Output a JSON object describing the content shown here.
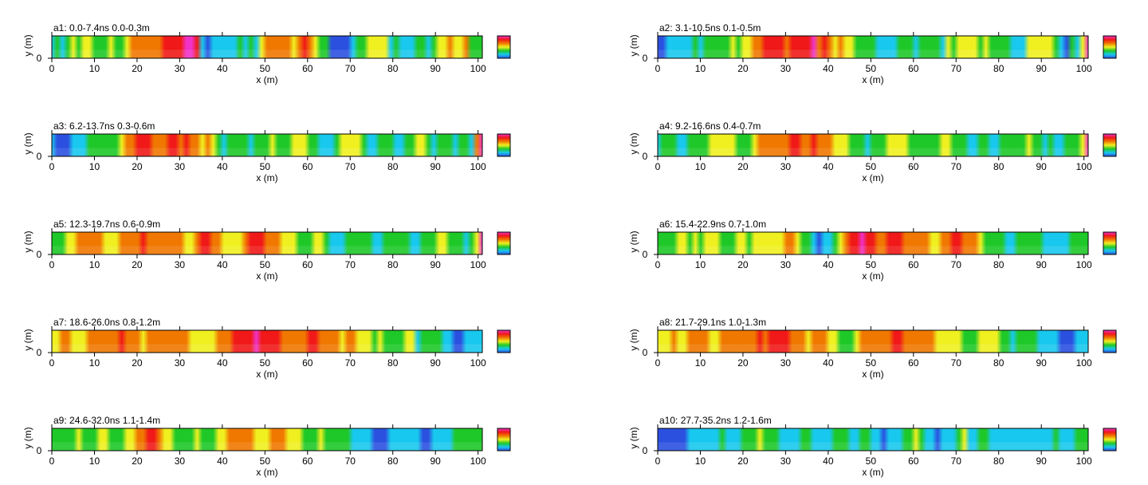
{
  "chart_data": {
    "type": "heatmap",
    "x_label": "x (m)",
    "y_label": "y (m)",
    "x_ticks": [
      0,
      10,
      20,
      30,
      40,
      50,
      60,
      70,
      80,
      90,
      100
    ],
    "y_ticks": [
      0
    ],
    "x_range": [
      0,
      101
    ],
    "colormap": [
      "#2b50e0",
      "#18c8ee",
      "#1ec828",
      "#f0f020",
      "#f07800",
      "#f01818",
      "#f032c8"
    ],
    "panels": [
      {
        "id": "a1",
        "title": "a1:  0.0-7.4ns  0.0-0.3m",
        "profile": [
          1,
          2,
          1,
          2,
          3,
          2,
          3,
          3,
          2,
          2,
          2,
          3,
          2,
          2,
          3,
          4,
          4,
          4,
          4,
          4,
          4,
          5,
          5,
          5,
          5,
          6,
          6,
          5,
          1,
          0,
          1,
          1,
          1,
          1,
          1,
          2,
          1,
          2,
          1,
          3,
          4,
          4,
          4,
          4,
          4,
          3,
          4,
          5,
          4,
          3,
          2,
          2,
          0,
          0,
          0,
          0,
          1,
          2,
          2,
          3,
          3,
          3,
          3,
          1,
          2,
          1,
          1,
          1,
          2,
          2,
          1,
          2,
          3,
          3,
          4,
          3,
          3,
          4,
          2,
          2,
          2
        ]
      },
      {
        "id": "a2",
        "title": "a2:  3.1-10.5ns  0.1-0.5m",
        "profile": [
          0,
          0,
          1,
          1,
          1,
          1,
          1,
          2,
          1,
          2,
          2,
          2,
          2,
          2,
          3,
          2,
          3,
          3,
          4,
          4,
          5,
          5,
          5,
          5,
          4,
          5,
          5,
          5,
          5,
          6,
          4,
          5,
          4,
          3,
          4,
          3,
          3,
          2,
          2,
          2,
          2,
          1,
          1,
          1,
          1,
          2,
          2,
          2,
          1,
          2,
          2,
          2,
          2,
          1,
          3,
          2,
          3,
          3,
          3,
          3,
          2,
          3,
          2,
          2,
          2,
          2,
          1,
          1,
          1,
          3,
          3,
          3,
          3,
          3,
          2,
          1,
          0,
          2,
          1,
          3,
          6
        ]
      },
      {
        "id": "a3",
        "title": "a3:  6.2-13.7ns  0.3-0.6m",
        "profile": [
          1,
          0,
          0,
          0,
          1,
          1,
          1,
          2,
          2,
          2,
          2,
          2,
          2,
          3,
          4,
          4,
          5,
          5,
          5,
          4,
          4,
          4,
          5,
          5,
          4,
          5,
          4,
          4,
          3,
          4,
          3,
          2,
          1,
          2,
          2,
          2,
          2,
          1,
          2,
          2,
          2,
          3,
          2,
          2,
          2,
          3,
          3,
          3,
          2,
          2,
          1,
          1,
          1,
          2,
          3,
          3,
          3,
          3,
          2,
          1,
          1,
          2,
          2,
          2,
          1,
          1,
          2,
          2,
          3,
          3,
          2,
          1,
          2,
          2,
          2,
          1,
          2,
          2,
          1,
          4,
          6
        ]
      },
      {
        "id": "a4",
        "title": "a4:  9.2-16.6ns  0.4-0.7m",
        "profile": [
          1,
          2,
          2,
          2,
          1,
          1,
          2,
          2,
          2,
          2,
          3,
          3,
          3,
          3,
          3,
          2,
          2,
          2,
          3,
          4,
          4,
          4,
          4,
          4,
          4,
          5,
          5,
          4,
          4,
          5,
          4,
          4,
          4,
          3,
          3,
          3,
          2,
          2,
          2,
          1,
          2,
          2,
          2,
          3,
          3,
          3,
          3,
          2,
          2,
          2,
          2,
          2,
          2,
          3,
          3,
          2,
          2,
          2,
          1,
          1,
          2,
          2,
          1,
          1,
          2,
          2,
          2,
          2,
          2,
          3,
          2,
          2,
          1,
          2,
          1,
          1,
          2,
          2,
          2,
          3,
          6
        ]
      },
      {
        "id": "a5",
        "title": "a5:  12.3-19.7ns  0.6-0.9m",
        "profile": [
          2,
          2,
          2,
          3,
          3,
          4,
          4,
          4,
          4,
          4,
          3,
          3,
          3,
          4,
          4,
          4,
          4,
          5,
          4,
          4,
          4,
          4,
          4,
          4,
          4,
          3,
          3,
          4,
          5,
          5,
          4,
          4,
          3,
          3,
          3,
          3,
          4,
          5,
          5,
          5,
          4,
          4,
          4,
          3,
          3,
          3,
          2,
          2,
          2,
          3,
          3,
          2,
          1,
          1,
          1,
          2,
          2,
          2,
          2,
          2,
          1,
          1,
          2,
          2,
          2,
          2,
          2,
          1,
          1,
          2,
          2,
          2,
          3,
          3,
          2,
          2,
          2,
          1,
          2,
          3,
          6
        ]
      },
      {
        "id": "a6",
        "title": "a6:  15.4-22.9ns  0.7-1.0m",
        "profile": [
          2,
          2,
          2,
          2,
          3,
          3,
          2,
          3,
          2,
          3,
          3,
          3,
          2,
          2,
          2,
          3,
          3,
          2,
          3,
          3,
          3,
          3,
          3,
          3,
          4,
          4,
          3,
          2,
          2,
          1,
          0,
          1,
          1,
          2,
          3,
          4,
          5,
          5,
          6,
          5,
          5,
          4,
          4,
          5,
          5,
          5,
          4,
          4,
          4,
          4,
          4,
          3,
          3,
          4,
          4,
          5,
          5,
          4,
          4,
          4,
          3,
          2,
          2,
          2,
          2,
          1,
          1,
          2,
          2,
          2,
          2,
          2,
          1,
          1,
          1,
          1,
          1,
          2,
          2,
          2,
          2
        ]
      },
      {
        "id": "a7",
        "title": "a7:  18.6-26.0ns  0.8-1.2m",
        "profile": [
          3,
          3,
          4,
          4,
          3,
          3,
          3,
          4,
          4,
          4,
          4,
          4,
          4,
          5,
          4,
          4,
          4,
          3,
          4,
          4,
          4,
          4,
          4,
          4,
          4,
          4,
          3,
          3,
          3,
          3,
          3,
          4,
          4,
          4,
          5,
          5,
          5,
          5,
          6,
          5,
          5,
          5,
          5,
          4,
          4,
          4,
          4,
          4,
          5,
          5,
          4,
          4,
          4,
          4,
          3,
          4,
          4,
          3,
          3,
          3,
          2,
          3,
          2,
          2,
          2,
          2,
          3,
          3,
          1,
          2,
          2,
          2,
          2,
          1,
          1,
          0,
          0,
          1,
          1,
          1,
          1
        ]
      },
      {
        "id": "a8",
        "title": "a8:  21.7-29.1ns  1.0-1.3m",
        "profile": [
          3,
          3,
          3,
          4,
          3,
          3,
          4,
          4,
          4,
          4,
          3,
          3,
          4,
          4,
          4,
          4,
          4,
          4,
          4,
          5,
          4,
          5,
          5,
          5,
          5,
          4,
          4,
          4,
          3,
          4,
          4,
          4,
          3,
          3,
          2,
          2,
          2,
          3,
          4,
          4,
          4,
          4,
          4,
          4,
          5,
          5,
          4,
          4,
          4,
          4,
          4,
          4,
          3,
          3,
          3,
          3,
          3,
          2,
          2,
          2,
          3,
          3,
          3,
          3,
          2,
          2,
          1,
          2,
          2,
          2,
          2,
          1,
          1,
          1,
          1,
          0,
          0,
          0,
          1,
          1,
          1
        ]
      },
      {
        "id": "a9",
        "title": "a9:  24.6-32.0ns  1.1-1.4m",
        "profile": [
          2,
          2,
          2,
          2,
          2,
          3,
          2,
          2,
          2,
          3,
          3,
          2,
          2,
          2,
          3,
          3,
          4,
          4,
          5,
          5,
          4,
          3,
          3,
          2,
          2,
          2,
          2,
          3,
          2,
          2,
          2,
          3,
          3,
          4,
          4,
          4,
          4,
          4,
          3,
          3,
          3,
          4,
          4,
          4,
          3,
          3,
          3,
          2,
          2,
          2,
          3,
          2,
          2,
          2,
          2,
          2,
          1,
          1,
          1,
          1,
          0,
          0,
          0,
          1,
          1,
          1,
          1,
          1,
          1,
          0,
          0,
          1,
          1,
          1,
          1,
          2,
          2,
          2,
          2,
          2,
          2
        ]
      },
      {
        "id": "a10",
        "title": "a10:  27.7-35.2ns  1.2-1.6m",
        "profile": [
          0,
          0,
          0,
          0,
          0,
          0,
          1,
          1,
          1,
          1,
          1,
          1,
          2,
          1,
          1,
          1,
          2,
          2,
          2,
          3,
          2,
          2,
          2,
          1,
          1,
          1,
          1,
          2,
          2,
          1,
          1,
          1,
          1,
          2,
          2,
          2,
          1,
          1,
          2,
          2,
          1,
          1,
          0,
          1,
          1,
          1,
          2,
          2,
          3,
          2,
          1,
          1,
          0,
          1,
          1,
          1,
          2,
          3,
          1,
          1,
          2,
          2,
          1,
          1,
          1,
          1,
          1,
          1,
          1,
          1,
          1,
          1,
          1,
          1,
          2,
          1,
          1,
          1,
          2,
          2,
          2
        ]
      }
    ]
  }
}
